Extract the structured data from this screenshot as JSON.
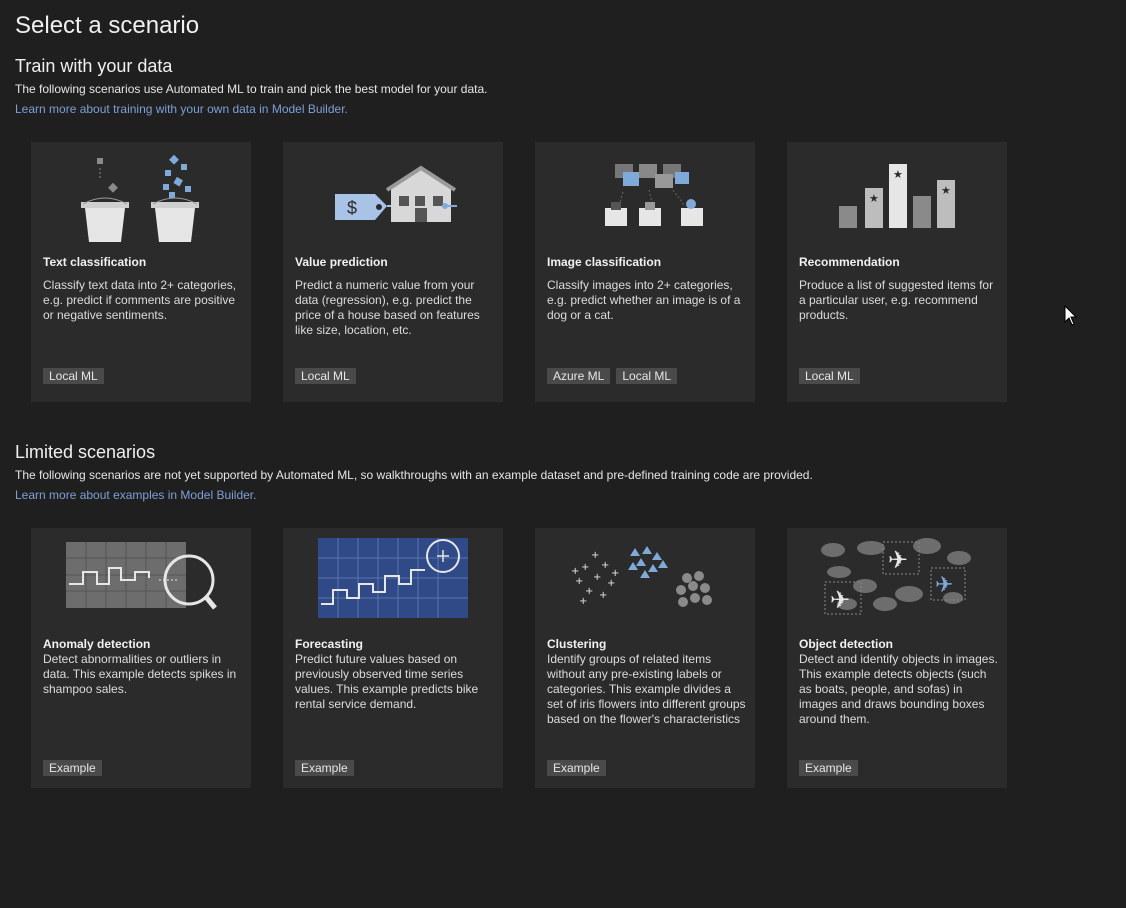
{
  "page_title": "Select a scenario",
  "train": {
    "title": "Train with your data",
    "description": "The following scenarios use Automated ML to train and pick the best model for your data.",
    "link": "Learn more about training with your own data in Model Builder.",
    "cards": [
      {
        "title": "Text classification",
        "description": "Classify text data into 2+ categories, e.g. predict if comments are positive or negative sentiments.",
        "tags": [
          "Local ML"
        ]
      },
      {
        "title": "Value prediction",
        "description": "Predict a numeric value from your data (regression), e.g. predict the price of a house based on features like size, location, etc.",
        "tags": [
          "Local ML"
        ]
      },
      {
        "title": "Image classification",
        "description": "Classify images into 2+ categories, e.g. predict whether an image is of a dog or a cat.",
        "tags": [
          "Azure ML",
          "Local ML"
        ]
      },
      {
        "title": "Recommendation",
        "description": "Produce a list of suggested items for a particular user, e.g. recommend products.",
        "tags": [
          "Local ML"
        ]
      }
    ]
  },
  "limited": {
    "title": "Limited scenarios",
    "description": "The following scenarios are not yet supported by Automated ML, so walkthroughs with an example dataset and pre-defined training code are provided.",
    "link": "Learn more about examples in Model Builder.",
    "cards": [
      {
        "title": "Anomaly detection",
        "description": "Detect abnormalities or outliers in data. This example detects spikes in shampoo sales.",
        "tags": [
          "Example"
        ]
      },
      {
        "title": "Forecasting",
        "description": "Predict future values based on previously observed time series values. This example predicts bike rental service demand.",
        "tags": [
          "Example"
        ]
      },
      {
        "title": "Clustering",
        "description": "Identify groups of related items without any pre-existing labels or categories. This example divides a set of iris flowers into different groups based on the flower's characteristics",
        "tags": [
          "Example"
        ]
      },
      {
        "title": "Object detection",
        "description": "Detect and identify objects in images. This example detects objects (such as boats, people, and sofas) in images and draws bounding boxes around them.",
        "tags": [
          "Example"
        ]
      }
    ]
  },
  "icons": [
    "text-classification-icon",
    "value-prediction-icon",
    "image-classification-icon",
    "recommendation-icon",
    "anomaly-detection-icon",
    "forecasting-icon",
    "clustering-icon",
    "object-detection-icon",
    "mouse-cursor-icon"
  ],
  "colors": {
    "background": "#1f1f1f",
    "card": "#2b2b2b",
    "link": "#7d9fd6",
    "tag": "#4a4a4a",
    "accent_blue": "#7fa9d9"
  }
}
